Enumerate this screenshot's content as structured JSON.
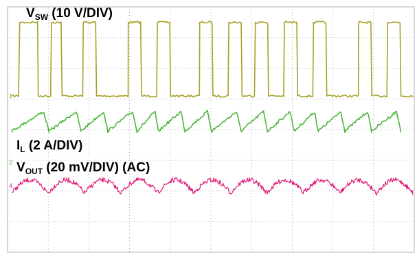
{
  "chart_data": {
    "type": "line",
    "grid": true,
    "series": [
      {
        "name": "VSW (10 V/DIV)",
        "label_main": "V",
        "label_sub": "SW",
        "label_rest": " (10 V/DIV)",
        "marker": "1",
        "color": "#a8a026",
        "low_level_div": 0,
        "high_level_div": 2.4,
        "pulses": [
          [
            0.2,
            0.9
          ],
          [
            1.4,
            1.8
          ],
          [
            2.6,
            3.1
          ],
          [
            4.3,
            4.8
          ],
          [
            5.4,
            5.9
          ],
          [
            7.0,
            7.5
          ],
          [
            8.1,
            8.6
          ],
          [
            9.1,
            9.6
          ],
          [
            10.2,
            10.7
          ],
          [
            11.3,
            11.8
          ],
          [
            13.0,
            13.5
          ],
          [
            14.1,
            14.6
          ]
        ]
      },
      {
        "name": "IL (2 A/DIV)",
        "label_main": "I",
        "label_sub": "L",
        "label_rest": " (2 A/DIV)",
        "marker": "2",
        "color": "#4cb53a",
        "offset_div": 0,
        "amplitude_div": 0.32,
        "triangle_peaks": [
          0.0,
          1.4,
          2.6,
          3.6,
          4.7,
          5.5,
          6.5,
          7.5,
          8.6,
          9.6,
          10.6,
          11.5,
          12.5,
          13.5,
          14.6
        ]
      },
      {
        "name": "VOUT (20 mV/DIV) (AC)",
        "label_main": "V",
        "label_sub": "OUT",
        "label_rest": " (20 mV/DIV) (AC)",
        "marker": "4",
        "color": "#e01b7a",
        "offset_div": 0,
        "amplitude_div": 0.35,
        "cycle_count": 11
      }
    ],
    "axes": {
      "x_divisions": 10,
      "y_divisions": 8
    }
  }
}
